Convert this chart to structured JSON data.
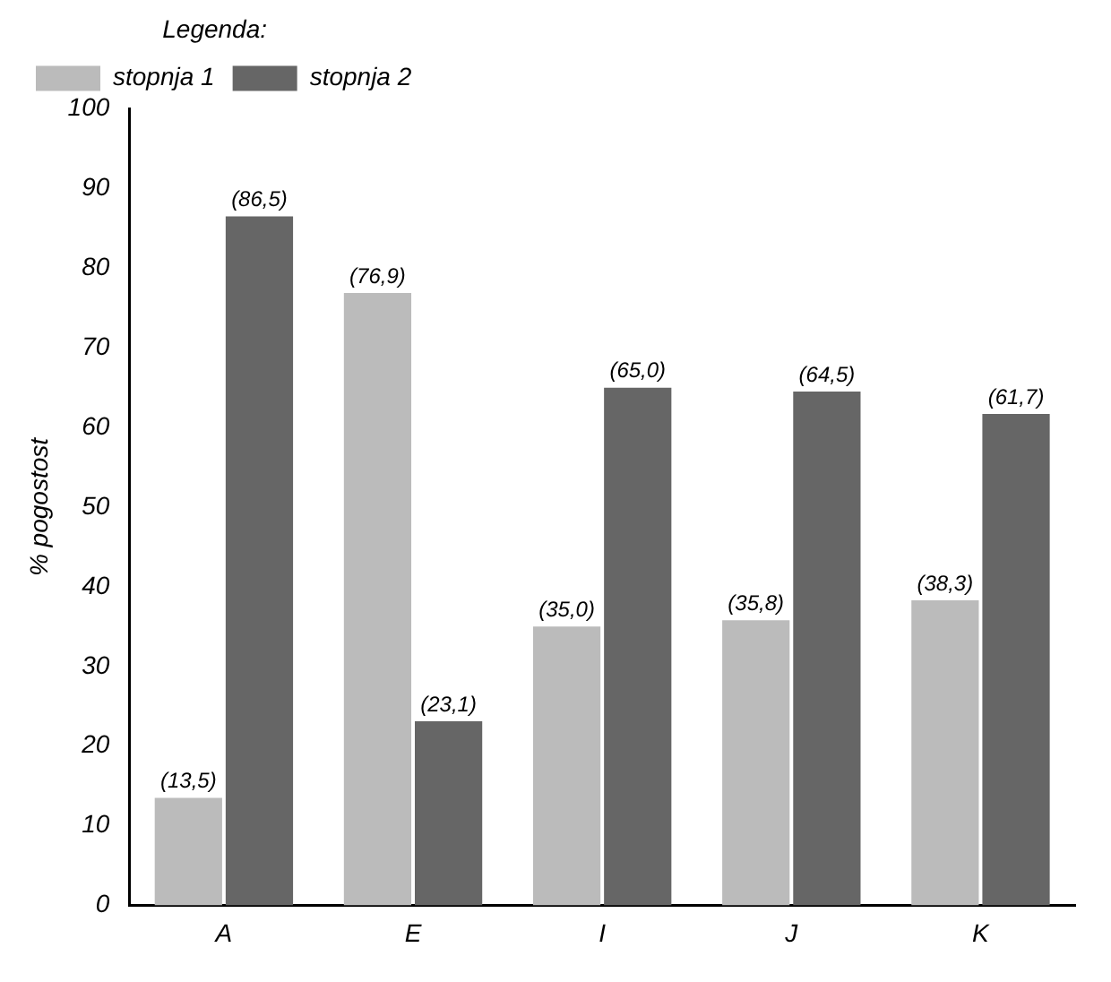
{
  "chart_data": {
    "type": "bar",
    "legend_title": "Legenda:",
    "ylabel": "% pogostost",
    "categories": [
      "A",
      "E",
      "I",
      "J",
      "K"
    ],
    "series": [
      {
        "name": "stopnja 1",
        "color": "#bbbbbb",
        "values": [
          13.5,
          76.9,
          35.0,
          35.8,
          38.3
        ],
        "value_labels": [
          "(13,5)",
          "(76,9)",
          "(35,0)",
          "(35,8)",
          "(38,3)"
        ]
      },
      {
        "name": "stopnja 2",
        "color": "#666666",
        "values": [
          86.5,
          23.1,
          65.0,
          64.5,
          61.7
        ],
        "value_labels": [
          "(86,5)",
          "(23,1)",
          "(65,0)",
          "(64,5)",
          "(61,7)"
        ]
      }
    ],
    "ylim": [
      0,
      100
    ],
    "yticks": [
      0,
      10,
      20,
      30,
      40,
      50,
      60,
      70,
      80,
      90,
      100
    ],
    "grid": false,
    "legend": "top left"
  }
}
